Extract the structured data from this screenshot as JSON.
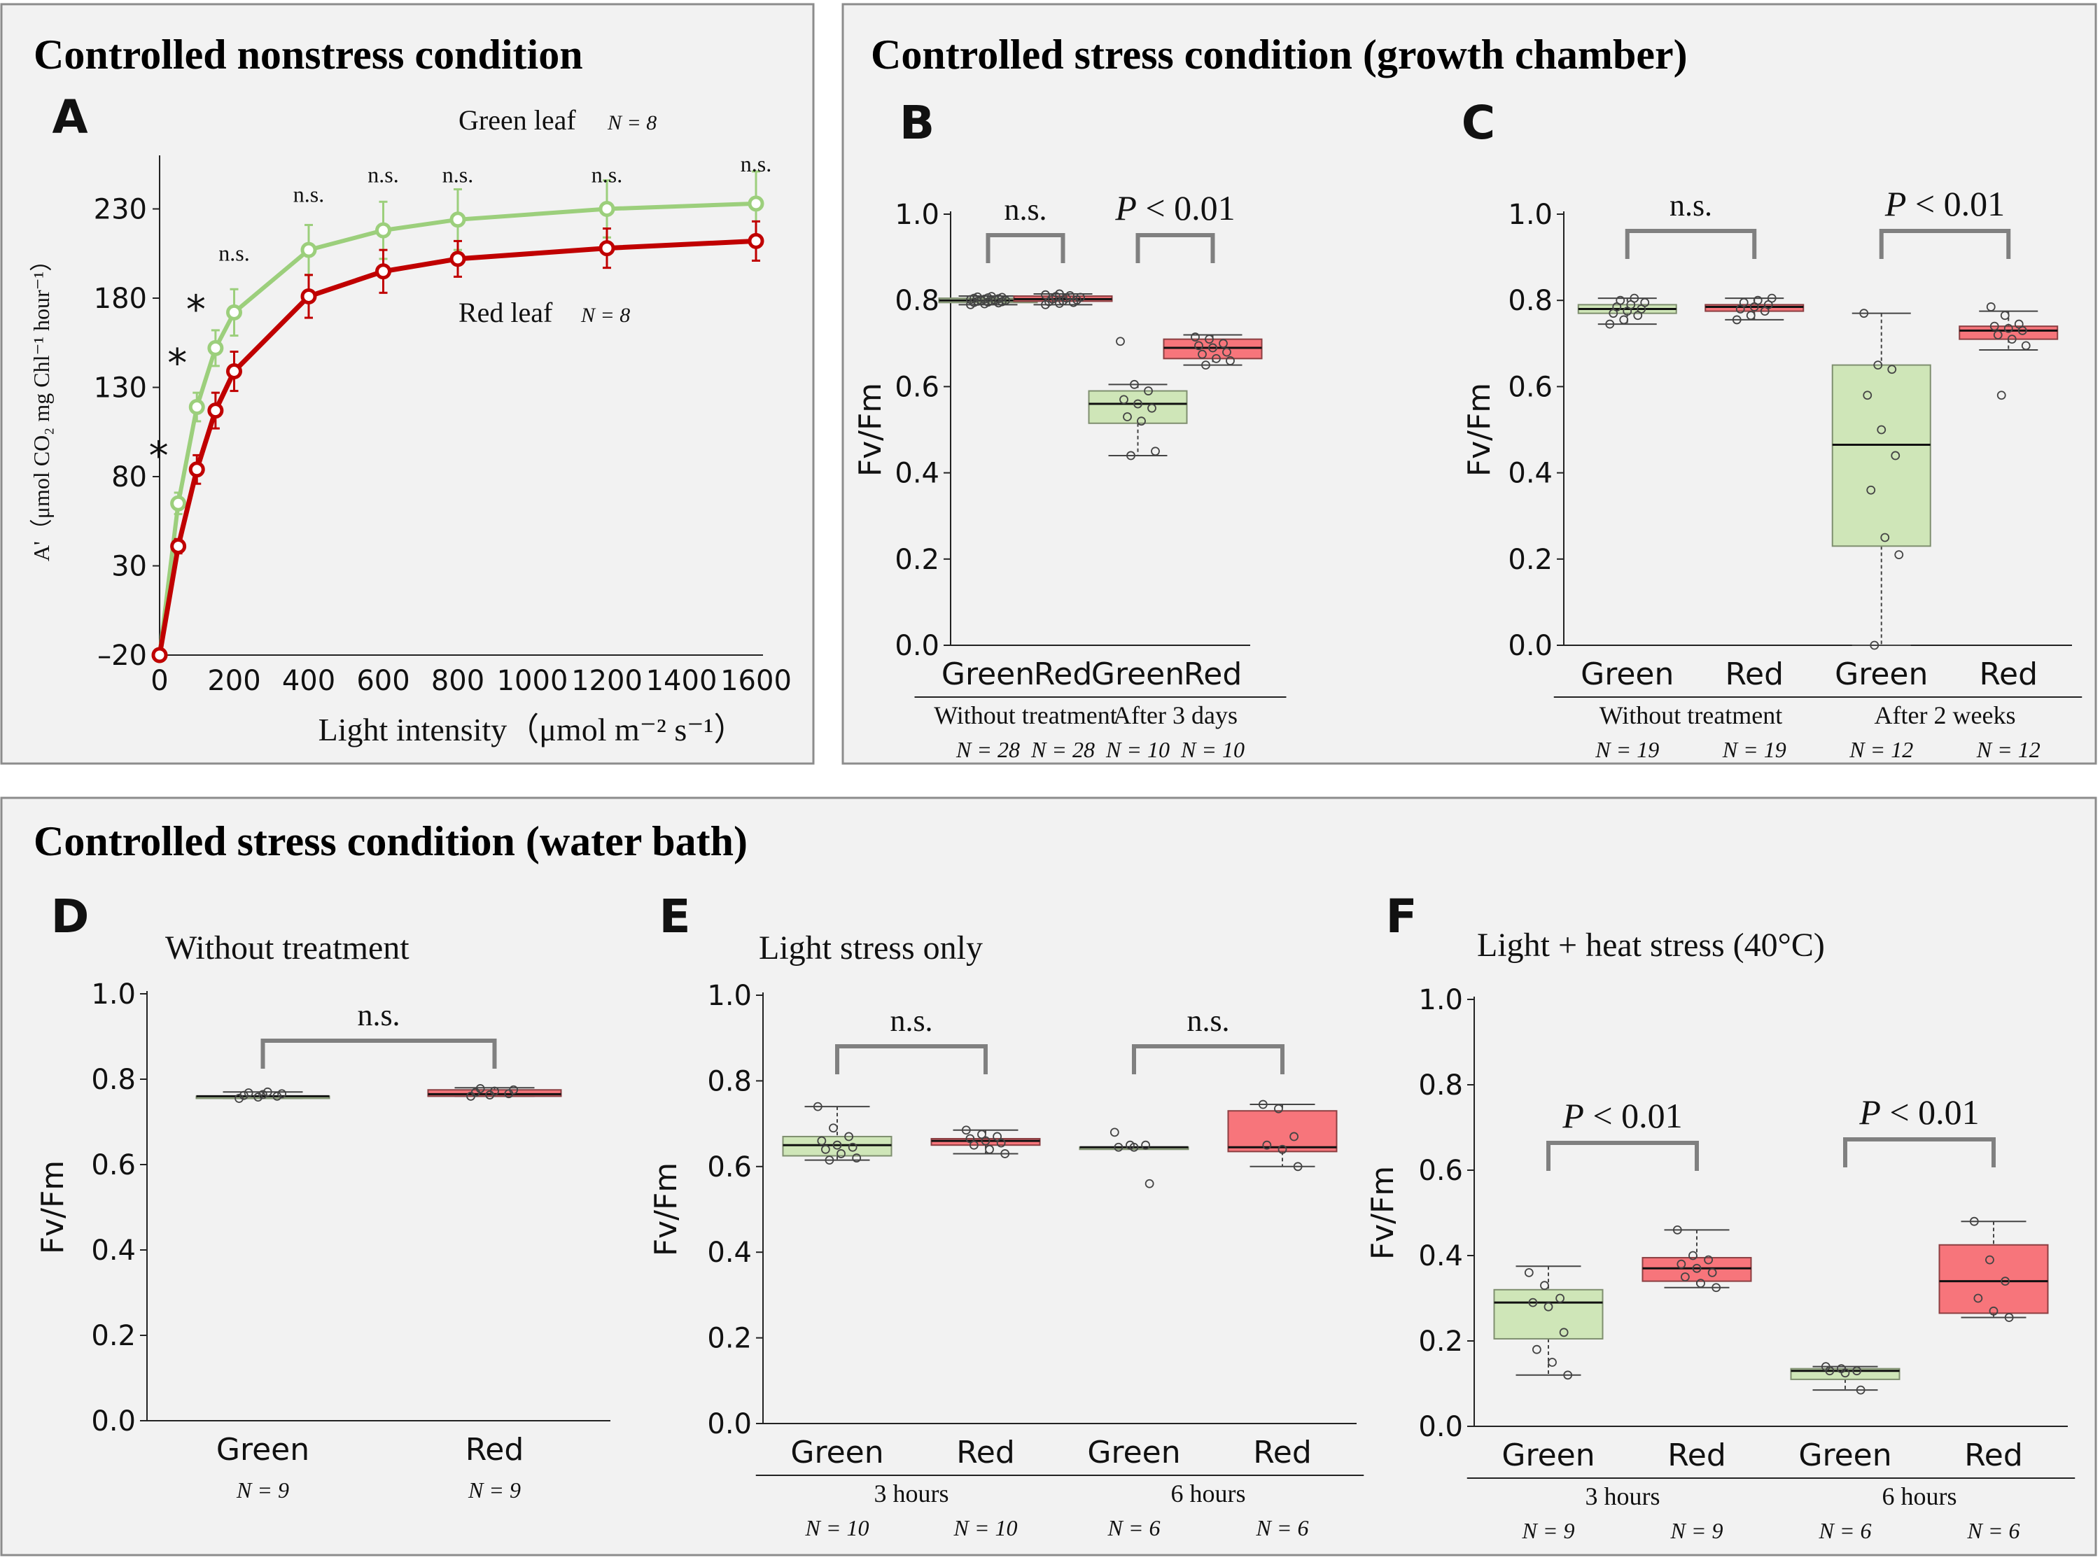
{
  "colors": {
    "panel_bg": "#f2f2f2",
    "panel_border": "#8c8c8c",
    "green_line": "#9ccf7c",
    "red_line": "#c00000",
    "green_box": "#cfe6b8",
    "green_box_edge": "#7f8f6f",
    "red_box": "#f7757b",
    "red_box_edge": "#8c3f42",
    "bracket": "#808080"
  },
  "sections": {
    "top_left_title": "Controlled nonstress condition",
    "top_right_title": "Controlled stress condition (growth chamber)",
    "bottom_title": "Controlled stress condition (water bath)"
  },
  "chart_data": [
    {
      "id": "A",
      "type": "line",
      "panel_letter": "A",
      "title": "",
      "xlabel": "Light intensity（μmol m⁻² s⁻¹）",
      "ylabel": "A'（μmol CO₂ mg Chl⁻¹ hour⁻¹）",
      "xlim": [
        0,
        1600
      ],
      "ylim": [
        -20,
        260
      ],
      "x_ticks": [
        "0",
        "200",
        "400",
        "600",
        "800",
        "1000",
        "1200",
        "1400",
        "1600"
      ],
      "x_tick_values": [
        0,
        200,
        400,
        600,
        800,
        1000,
        1200,
        1400,
        1600
      ],
      "y_ticks": [
        "–20",
        "30",
        "80",
        "130",
        "180",
        "230"
      ],
      "y_tick_values": [
        -20,
        30,
        80,
        130,
        180,
        230
      ],
      "x": [
        0,
        50,
        100,
        150,
        200,
        400,
        600,
        800,
        1200,
        1600
      ],
      "series": [
        {
          "name": "Green leaf",
          "legend": "Green leaf",
          "n_label": "N = 8",
          "color": "#9ccf7c",
          "values": [
            -20,
            65,
            119,
            152,
            172,
            207,
            218,
            224,
            230,
            233
          ],
          "error": [
            0,
            6,
            8,
            10,
            13,
            14,
            16,
            17,
            16,
            18
          ]
        },
        {
          "name": "Red leaf",
          "legend": "Red leaf",
          "n_label": "N = 8",
          "color": "#c00000",
          "values": [
            -20,
            41,
            84,
            117,
            139,
            181,
            195,
            202,
            208,
            212
          ],
          "error": [
            0,
            4,
            8,
            10,
            11,
            12,
            12,
            10,
            11,
            11
          ]
        }
      ],
      "annotations": [
        {
          "x": 50,
          "y": 92,
          "text": "*"
        },
        {
          "x": 100,
          "y": 144,
          "text": "*"
        },
        {
          "x": 150,
          "y": 174,
          "text": "*"
        },
        {
          "x": 200,
          "y": 201,
          "text": "n.s."
        },
        {
          "x": 400,
          "y": 234,
          "text": "n.s."
        },
        {
          "x": 600,
          "y": 245,
          "text": "n.s."
        },
        {
          "x": 800,
          "y": 245,
          "text": "n.s."
        },
        {
          "x": 1200,
          "y": 245,
          "text": "n.s."
        },
        {
          "x": 1600,
          "y": 251,
          "text": "n.s."
        }
      ]
    },
    {
      "id": "B",
      "type": "box",
      "panel_letter": "B",
      "ylabel": "Fv/Fm",
      "ylim": [
        0,
        1
      ],
      "y_ticks": [
        "0.0",
        "0.2",
        "0.4",
        "0.6",
        "0.8",
        "1.0"
      ],
      "y_tick_values": [
        0,
        0.2,
        0.4,
        0.6,
        0.8,
        1.0
      ],
      "groups": [
        {
          "label": "Without treatment",
          "categories": [
            "Green",
            "Red"
          ],
          "n": [
            "N = 28",
            "N = 28"
          ],
          "significance": "n.s."
        },
        {
          "label": "After 3 days",
          "categories": [
            "Green",
            "Red"
          ],
          "n": [
            "N = 10",
            "N = 10"
          ],
          "significance": "P < 0.01"
        }
      ],
      "boxes": [
        {
          "color": "green",
          "min": 0.79,
          "q1": 0.795,
          "median": 0.8,
          "q3": 0.805,
          "max": 0.81,
          "points": [
            0.79,
            0.792,
            0.794,
            0.795,
            0.796,
            0.797,
            0.798,
            0.799,
            0.8,
            0.8,
            0.801,
            0.802,
            0.803,
            0.804,
            0.805,
            0.806,
            0.807,
            0.808,
            0.809
          ]
        },
        {
          "color": "red",
          "min": 0.79,
          "q1": 0.798,
          "median": 0.803,
          "q3": 0.81,
          "max": 0.815,
          "points": [
            0.79,
            0.793,
            0.795,
            0.797,
            0.799,
            0.801,
            0.803,
            0.805,
            0.807,
            0.809,
            0.811,
            0.813,
            0.815
          ]
        },
        {
          "color": "green",
          "min": 0.44,
          "q1": 0.515,
          "median": 0.56,
          "q3": 0.59,
          "max": 0.605,
          "points": [
            0.705,
            0.605,
            0.59,
            0.57,
            0.56,
            0.55,
            0.53,
            0.52,
            0.45,
            0.44
          ]
        },
        {
          "color": "red",
          "min": 0.65,
          "q1": 0.665,
          "median": 0.69,
          "q3": 0.71,
          "max": 0.72,
          "points": [
            0.715,
            0.71,
            0.7,
            0.695,
            0.69,
            0.68,
            0.675,
            0.665,
            0.66,
            0.65
          ]
        }
      ]
    },
    {
      "id": "C",
      "type": "box",
      "panel_letter": "C",
      "ylabel": "Fv/Fm",
      "ylim": [
        0,
        1
      ],
      "y_ticks": [
        "0.0",
        "0.2",
        "0.4",
        "0.6",
        "0.8",
        "1.0"
      ],
      "y_tick_values": [
        0,
        0.2,
        0.4,
        0.6,
        0.8,
        1.0
      ],
      "groups": [
        {
          "label": "Without treatment",
          "categories": [
            "Green",
            "Red"
          ],
          "n": [
            "N = 19",
            "N = 19"
          ],
          "significance": "n.s."
        },
        {
          "label": "After 2 weeks",
          "categories": [
            "Green",
            "Red"
          ],
          "n": [
            "N = 12",
            "N = 12"
          ],
          "significance": "P < 0.01"
        }
      ],
      "boxes": [
        {
          "color": "green",
          "min": 0.745,
          "q1": 0.77,
          "median": 0.78,
          "q3": 0.79,
          "max": 0.805,
          "points": [
            0.745,
            0.755,
            0.765,
            0.77,
            0.775,
            0.78,
            0.785,
            0.79,
            0.795,
            0.8,
            0.805
          ]
        },
        {
          "color": "red",
          "min": 0.755,
          "q1": 0.775,
          "median": 0.785,
          "q3": 0.79,
          "max": 0.805,
          "points": [
            0.755,
            0.765,
            0.775,
            0.78,
            0.785,
            0.79,
            0.795,
            0.8,
            0.805
          ]
        },
        {
          "color": "green",
          "min": 0.0,
          "q1": 0.23,
          "median": 0.465,
          "q3": 0.65,
          "max": 0.77,
          "points": [
            0.77,
            0.65,
            0.64,
            0.58,
            0.5,
            0.44,
            0.36,
            0.25,
            0.21,
            0.0
          ]
        },
        {
          "color": "red",
          "min": 0.685,
          "q1": 0.71,
          "median": 0.73,
          "q3": 0.74,
          "max": 0.775,
          "points": [
            0.785,
            0.765,
            0.745,
            0.74,
            0.735,
            0.73,
            0.72,
            0.71,
            0.695,
            0.58
          ]
        }
      ]
    },
    {
      "id": "D",
      "type": "box",
      "panel_letter": "D",
      "subtitle": "Without treatment",
      "ylabel": "Fv/Fm",
      "ylim": [
        0,
        1
      ],
      "y_ticks": [
        "0.0",
        "0.2",
        "0.4",
        "0.6",
        "0.8",
        "1.0"
      ],
      "y_tick_values": [
        0,
        0.2,
        0.4,
        0.6,
        0.8,
        1.0
      ],
      "groups": [
        {
          "label": "",
          "categories": [
            "Green",
            "Red"
          ],
          "n": [
            "N = 9",
            "N = 9"
          ],
          "significance": "n.s."
        }
      ],
      "boxes": [
        {
          "color": "green",
          "min": 0.755,
          "q1": 0.755,
          "median": 0.76,
          "q3": 0.76,
          "max": 0.77,
          "points": [
            0.755,
            0.758,
            0.76,
            0.762,
            0.764,
            0.766,
            0.768,
            0.77
          ]
        },
        {
          "color": "red",
          "min": 0.76,
          "q1": 0.76,
          "median": 0.765,
          "q3": 0.775,
          "max": 0.78,
          "points": [
            0.76,
            0.763,
            0.766,
            0.769,
            0.772,
            0.775,
            0.778
          ]
        }
      ]
    },
    {
      "id": "E",
      "type": "box",
      "panel_letter": "E",
      "subtitle": "Light stress only",
      "ylabel": "Fv/Fm",
      "ylim": [
        0,
        1
      ],
      "y_ticks": [
        "0.0",
        "0.2",
        "0.4",
        "0.6",
        "0.8",
        "1.0"
      ],
      "y_tick_values": [
        0,
        0.2,
        0.4,
        0.6,
        0.8,
        1.0
      ],
      "groups": [
        {
          "label": "3 hours",
          "categories": [
            "Green",
            "Red"
          ],
          "n": [
            "N = 10",
            "N = 10"
          ],
          "significance": "n.s."
        },
        {
          "label": "6 hours",
          "categories": [
            "Green",
            "Red"
          ],
          "n": [
            "N = 6",
            "N = 6"
          ],
          "significance": "n.s."
        }
      ],
      "boxes": [
        {
          "color": "green",
          "min": 0.615,
          "q1": 0.625,
          "median": 0.65,
          "q3": 0.67,
          "max": 0.74,
          "points": [
            0.74,
            0.69,
            0.67,
            0.66,
            0.65,
            0.645,
            0.64,
            0.63,
            0.62,
            0.615
          ]
        },
        {
          "color": "red",
          "min": 0.63,
          "q1": 0.65,
          "median": 0.66,
          "q3": 0.665,
          "max": 0.685,
          "points": [
            0.685,
            0.675,
            0.67,
            0.665,
            0.66,
            0.655,
            0.65,
            0.64,
            0.63
          ]
        },
        {
          "color": "green",
          "min": 0.645,
          "q1": 0.645,
          "median": 0.645,
          "q3": 0.645,
          "max": 0.645,
          "points": [
            0.68,
            0.65,
            0.65,
            0.645,
            0.645,
            0.56
          ]
        },
        {
          "color": "red",
          "min": 0.6,
          "q1": 0.635,
          "median": 0.645,
          "q3": 0.73,
          "max": 0.745,
          "points": [
            0.745,
            0.735,
            0.67,
            0.65,
            0.64,
            0.6
          ]
        }
      ]
    },
    {
      "id": "F",
      "type": "box",
      "panel_letter": "F",
      "subtitle": "Light + heat stress (40°C)",
      "ylabel": "Fv/Fm",
      "ylim": [
        0,
        1
      ],
      "y_ticks": [
        "0.0",
        "0.2",
        "0.4",
        "0.6",
        "0.8",
        "1.0"
      ],
      "y_tick_values": [
        0,
        0.2,
        0.4,
        0.6,
        0.8,
        1.0
      ],
      "groups": [
        {
          "label": "3 hours",
          "categories": [
            "Green",
            "Red"
          ],
          "n": [
            "N = 9",
            "N = 9"
          ],
          "significance": "P < 0.01"
        },
        {
          "label": "6 hours",
          "categories": [
            "Green",
            "Red"
          ],
          "n": [
            "N = 6",
            "N = 6"
          ],
          "significance": "P < 0.01"
        }
      ],
      "boxes": [
        {
          "color": "green",
          "min": 0.12,
          "q1": 0.205,
          "median": 0.29,
          "q3": 0.32,
          "max": 0.375,
          "points": [
            0.36,
            0.33,
            0.3,
            0.29,
            0.28,
            0.22,
            0.18,
            0.15,
            0.12
          ]
        },
        {
          "color": "red",
          "min": 0.325,
          "q1": 0.34,
          "median": 0.37,
          "q3": 0.395,
          "max": 0.46,
          "points": [
            0.46,
            0.4,
            0.39,
            0.38,
            0.37,
            0.36,
            0.35,
            0.335,
            0.325
          ]
        },
        {
          "color": "green",
          "min": 0.085,
          "q1": 0.11,
          "median": 0.13,
          "q3": 0.135,
          "max": 0.14,
          "points": [
            0.14,
            0.135,
            0.13,
            0.13,
            0.125,
            0.085
          ]
        },
        {
          "color": "red",
          "min": 0.255,
          "q1": 0.265,
          "median": 0.34,
          "q3": 0.425,
          "max": 0.48,
          "points": [
            0.48,
            0.39,
            0.34,
            0.3,
            0.27,
            0.255
          ]
        }
      ]
    }
  ]
}
